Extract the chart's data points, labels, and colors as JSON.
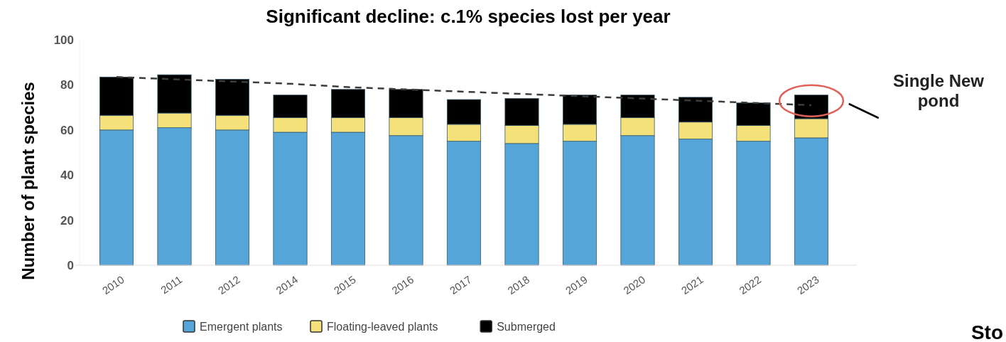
{
  "chart_data": {
    "type": "bar",
    "stacked": true,
    "title": "Significant decline: c.1% species lost per year",
    "ylabel": "Number of  plant species",
    "categories": [
      "2010",
      "2011",
      "2012",
      "2014",
      "2015",
      "2016",
      "2017",
      "2018",
      "2019",
      "2020",
      "2021",
      "2022",
      "2023"
    ],
    "series": [
      {
        "name": "Emergent plants",
        "color": "#56a5d9",
        "values": [
          60,
          61,
          60,
          59,
          59,
          57.5,
          55,
          54,
          55,
          57.5,
          56,
          55,
          56.5
        ]
      },
      {
        "name": "Floating-leaved plants",
        "color": "#f5e17a",
        "values": [
          6.5,
          6.5,
          6.5,
          6.5,
          6.5,
          8,
          7.5,
          8,
          7.5,
          8,
          7.5,
          7,
          8.5
        ]
      },
      {
        "name": "Submerged",
        "color": "#000000",
        "values": [
          17,
          17,
          16,
          10,
          12.5,
          12.5,
          11,
          12,
          13,
          10,
          11,
          10,
          10.5
        ]
      },
      {
        "type": "line",
        "values": [
          83.5,
          82.5,
          81.5,
          80.5,
          79,
          78,
          77,
          76,
          75,
          74,
          73,
          72,
          71
        ],
        "color": "#3c3c3c",
        "line_style": "dashed"
      }
    ],
    "ylim": [
      0,
      100
    ],
    "yticks": [
      0,
      20,
      40,
      60,
      80,
      100
    ],
    "legend": "bottom",
    "grid": false,
    "annotations": [
      "Single New pond",
      "Sto"
    ]
  }
}
